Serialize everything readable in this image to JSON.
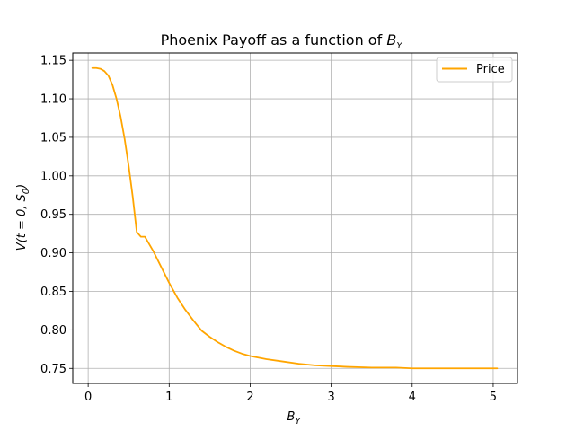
{
  "chart_data": {
    "type": "line",
    "title": "Phoenix Payoff as a function of",
    "title_symbol": "B",
    "title_symbol_sub": "Y",
    "xlabel": "B",
    "xlabel_sub": "Y",
    "ylabel_parts": [
      "V(t = 0, S",
      "0",
      ")"
    ],
    "xlim": [
      -0.19,
      5.3
    ],
    "ylim": [
      0.7305,
      1.1595
    ],
    "xticks": [
      0,
      1,
      2,
      3,
      4,
      5
    ],
    "xtick_labels": [
      "0",
      "1",
      "2",
      "3",
      "4",
      "5"
    ],
    "yticks": [
      0.75,
      0.8,
      0.85,
      0.9,
      0.95,
      1.0,
      1.05,
      1.1,
      1.15
    ],
    "ytick_labels": [
      "0.75",
      "0.80",
      "0.85",
      "0.90",
      "0.95",
      "1.00",
      "1.05",
      "1.10",
      "1.15"
    ],
    "grid": true,
    "legend_position": "top-right",
    "colors": {
      "series": "#ffa500",
      "grid": "#b0b0b0",
      "axis": "#000000"
    },
    "series": [
      {
        "name": "Price",
        "x": [
          0.05,
          0.1,
          0.15,
          0.2,
          0.25,
          0.3,
          0.35,
          0.4,
          0.45,
          0.5,
          0.55,
          0.6,
          0.65,
          0.7,
          0.8,
          0.9,
          1.0,
          1.1,
          1.2,
          1.3,
          1.4,
          1.5,
          1.6,
          1.7,
          1.8,
          1.9,
          2.0,
          2.2,
          2.4,
          2.6,
          2.8,
          3.0,
          3.2,
          3.5,
          3.8,
          4.0,
          4.3,
          4.6,
          4.9,
          5.05
        ],
        "y": [
          1.14,
          1.14,
          1.139,
          1.136,
          1.13,
          1.118,
          1.1,
          1.077,
          1.048,
          1.013,
          0.973,
          0.927,
          0.921,
          0.921,
          0.903,
          0.882,
          0.861,
          0.842,
          0.826,
          0.812,
          0.799,
          0.791,
          0.784,
          0.778,
          0.773,
          0.769,
          0.766,
          0.762,
          0.759,
          0.756,
          0.754,
          0.753,
          0.752,
          0.751,
          0.751,
          0.75,
          0.75,
          0.75,
          0.75,
          0.75
        ]
      }
    ]
  }
}
